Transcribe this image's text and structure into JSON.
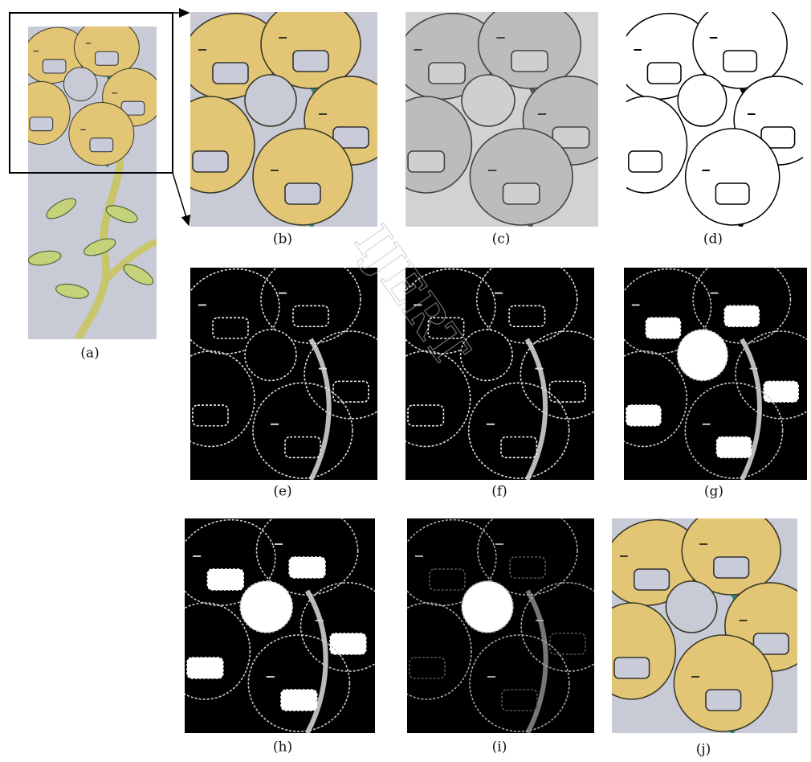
{
  "figure": {
    "panels": [
      {
        "label": "(a)"
      },
      {
        "label": "(b)"
      },
      {
        "label": "(c)"
      },
      {
        "label": "(d)"
      },
      {
        "label": "(e)"
      },
      {
        "label": "(f)"
      },
      {
        "label": "(g)"
      },
      {
        "label": "(h)"
      },
      {
        "label": "(i)"
      },
      {
        "label": "(j)"
      }
    ],
    "watermark": "IJERT"
  }
}
